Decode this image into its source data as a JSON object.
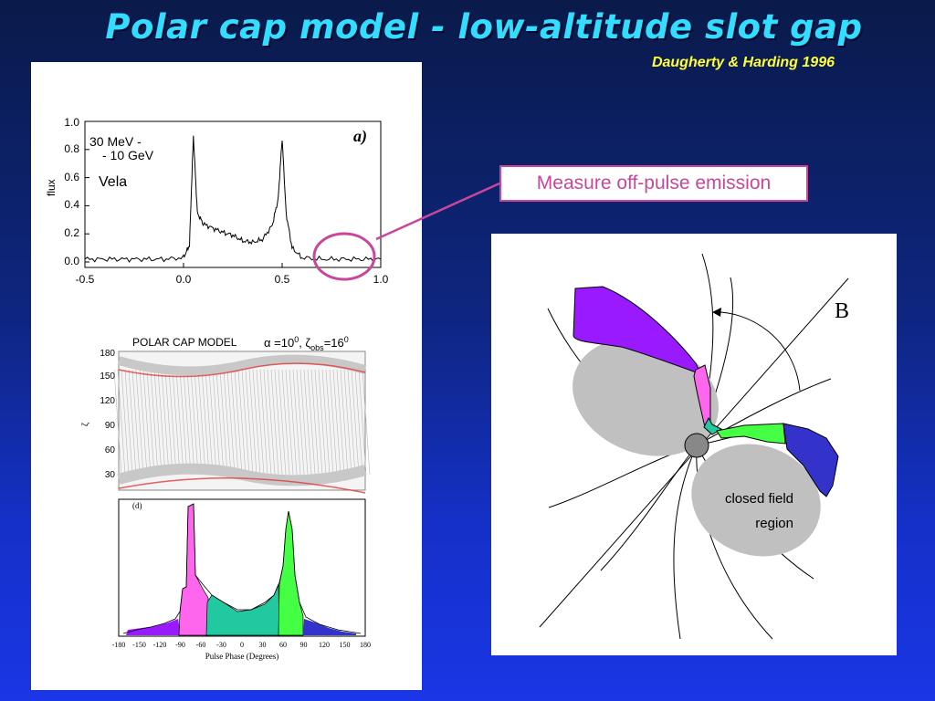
{
  "slide": {
    "title": "Polar cap model - low-altitude slot gap",
    "citation": "Daugherty & Harding 1996",
    "callout": "Measure off-pulse emission"
  },
  "top_plot": {
    "energy_line1": "30 MeV -",
    "energy_line2": "- 10 GeV",
    "source": "Vela",
    "panel_label": "a)",
    "ylabel": "flux",
    "yticks": [
      "1.0",
      "0.8",
      "0.6",
      "0.4",
      "0.2",
      "0.0"
    ],
    "xticks": [
      "-0.5",
      "0.0",
      "0.5",
      "1.0"
    ]
  },
  "middle_plot": {
    "heading": "POLAR CAP MODEL",
    "params_alpha": "α =10",
    "params_alpha_exp": "0",
    "params_zeta": ", ζ",
    "params_zeta_sub": "obs",
    "params_zeta_val": "=16",
    "params_zeta_exp": "0",
    "ylabel": "ζ",
    "yticks": [
      "180",
      "150",
      "120",
      "90",
      "60",
      "30"
    ]
  },
  "bottom_plot": {
    "panel_label": "(d)",
    "xlabel": "Pulse Phase (Degrees)",
    "xticks": [
      "-180",
      "-150",
      "-120",
      "-90",
      "-60",
      "-30",
      "0",
      "30",
      "60",
      "90",
      "120",
      "150",
      "180"
    ]
  },
  "diagram": {
    "b_label": "B",
    "region_line1": "closed field",
    "region_line2": "region"
  },
  "colors": {
    "title": "#33ddff",
    "citation": "#ffff33",
    "callout": "#c8469c",
    "purple": "#9a1aff",
    "pink": "#ff66ee",
    "teal": "#22c8a0",
    "green": "#44ff44",
    "blue": "#3333cc",
    "closed_region": "#c0c0c0"
  },
  "chart_data": {
    "type": "line",
    "source": "Vela",
    "energy_range": "30 MeV - - 10 GeV",
    "xlabel": "",
    "ylabel": "flux",
    "xlim": [
      -0.5,
      1.0
    ],
    "ylim": [
      0.0,
      1.0
    ],
    "x": [
      -0.5,
      -0.4,
      -0.3,
      -0.2,
      -0.1,
      0.0,
      0.03,
      0.05,
      0.07,
      0.1,
      0.15,
      0.2,
      0.25,
      0.3,
      0.35,
      0.4,
      0.45,
      0.48,
      0.5,
      0.52,
      0.55,
      0.6,
      0.7,
      0.8,
      0.9,
      1.0
    ],
    "y": [
      0.02,
      0.02,
      0.02,
      0.02,
      0.02,
      0.03,
      0.12,
      0.9,
      0.35,
      0.27,
      0.24,
      0.21,
      0.19,
      0.15,
      0.14,
      0.16,
      0.26,
      0.45,
      0.88,
      0.35,
      0.1,
      0.03,
      0.02,
      0.02,
      0.02,
      0.02
    ]
  }
}
